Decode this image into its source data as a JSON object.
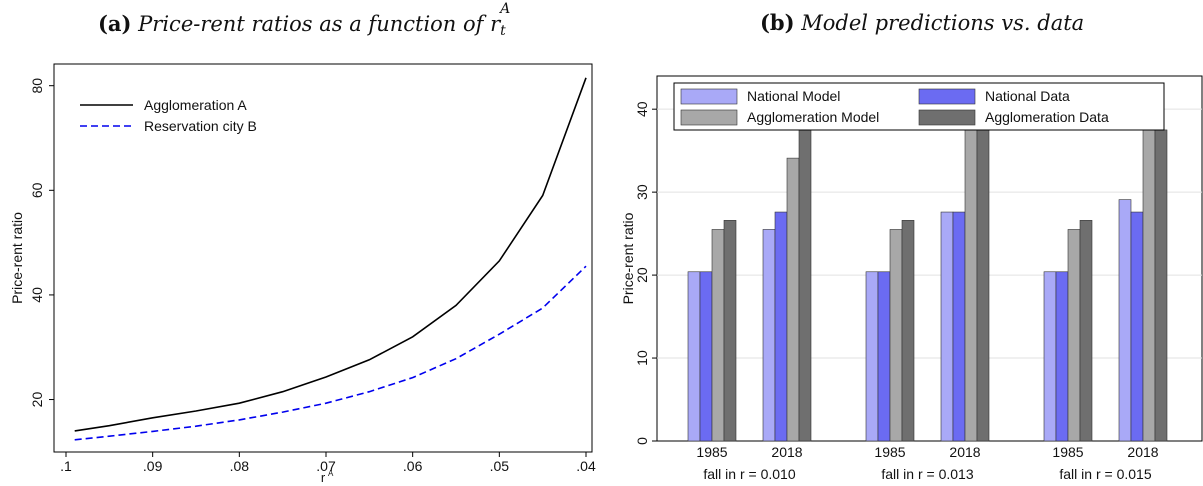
{
  "titles": {
    "a_label": "(a)",
    "a_text": "Price-rent ratios as a function of r",
    "a_sup": "A",
    "a_sub": "t",
    "b_label": "(b)",
    "b_text": "Model predictions vs. data"
  },
  "chart_data": [
    {
      "type": "line",
      "title": "(a) Price-rent ratios as a function of r_t^A",
      "xlabel": "r",
      "xlabel_sup": "A",
      "ylabel": "Price-rent ratio",
      "xlim": [
        0.1,
        0.04
      ],
      "x_reversed": true,
      "ylim": [
        11.5,
        83
      ],
      "xticks": [
        0.1,
        0.09,
        0.08,
        0.07,
        0.06,
        0.05,
        0.04
      ],
      "xtick_labels": [
        ".1",
        ".09",
        ".08",
        ".07",
        ".06",
        ".05",
        ".04"
      ],
      "yticks": [
        20,
        40,
        60,
        80
      ],
      "ytick_labels": [
        "20",
        "40",
        "60",
        "80"
      ],
      "grid": false,
      "legend_position": "top-left",
      "series": [
        {
          "name": "Agglomeration A",
          "color": "#000000",
          "dash": "solid",
          "x": [
            0.099,
            0.095,
            0.09,
            0.085,
            0.08,
            0.075,
            0.07,
            0.065,
            0.06,
            0.055,
            0.05,
            0.045,
            0.04
          ],
          "y": [
            14.0,
            15.0,
            16.5,
            17.8,
            19.3,
            21.5,
            24.3,
            27.6,
            32.0,
            38.0,
            46.5,
            59.0,
            81.5
          ]
        },
        {
          "name": "Reservation city B",
          "color": "#0000ee",
          "dash": "dashed",
          "x": [
            0.099,
            0.095,
            0.09,
            0.085,
            0.08,
            0.075,
            0.07,
            0.065,
            0.06,
            0.055,
            0.05,
            0.045,
            0.04
          ],
          "y": [
            12.3,
            13.0,
            13.9,
            14.9,
            16.1,
            17.6,
            19.3,
            21.5,
            24.2,
            27.8,
            32.5,
            37.5,
            45.5
          ]
        }
      ]
    },
    {
      "type": "bar",
      "title": "(b) Model predictions vs. data",
      "ylabel": "Price-rent ratio",
      "ylim": [
        0,
        44
      ],
      "yticks": [
        0,
        10,
        20,
        30,
        40
      ],
      "ytick_labels": [
        "0",
        "10",
        "20",
        "30",
        "40"
      ],
      "grid": true,
      "legend_position": "top",
      "groups": [
        {
          "label": "fall in r =  0.010",
          "subgroups": [
            {
              "label": "1985",
              "values": [
                20.4,
                20.4,
                25.5,
                26.6
              ]
            },
            {
              "label": "2018",
              "values": [
                25.5,
                27.6,
                34.1,
                37.5
              ]
            }
          ]
        },
        {
          "label": "fall in r =  0.013",
          "subgroups": [
            {
              "label": "1985",
              "values": [
                20.4,
                20.4,
                25.5,
                26.6
              ]
            },
            {
              "label": "2018",
              "values": [
                27.6,
                27.6,
                37.9,
                37.5
              ]
            }
          ]
        },
        {
          "label": "fall in r =  0.015",
          "subgroups": [
            {
              "label": "1985",
              "values": [
                20.4,
                20.4,
                25.5,
                26.6
              ]
            },
            {
              "label": "2018",
              "values": [
                29.1,
                27.6,
                40.9,
                37.5
              ]
            }
          ]
        }
      ],
      "series": [
        {
          "name": "National Model",
          "color": "#a9a9f7"
        },
        {
          "name": "National Data",
          "color": "#6b6bf2"
        },
        {
          "name": "Agglomeration Model",
          "color": "#a8a8a8"
        },
        {
          "name": "Agglomeration Data",
          "color": "#6f6f6f"
        }
      ]
    }
  ]
}
